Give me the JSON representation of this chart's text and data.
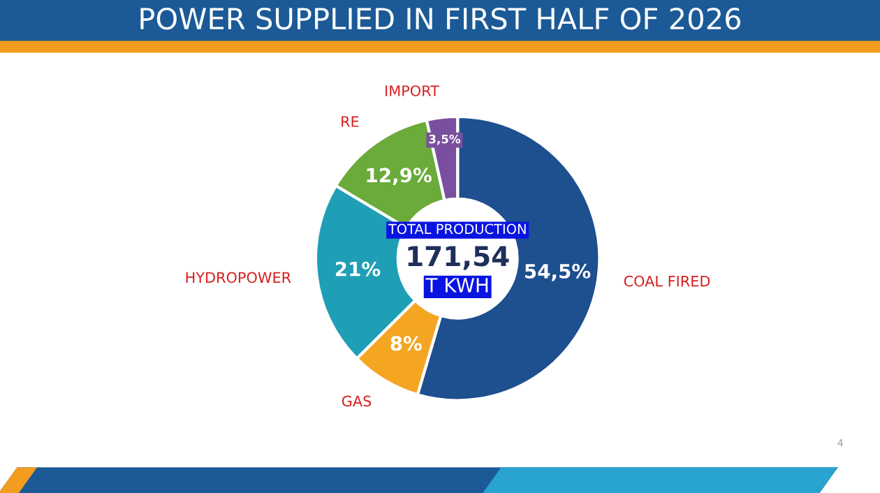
{
  "chart_data": {
    "type": "donut",
    "title": "POWER SUPPLIED IN FIRST HALF OF 2026",
    "categories": [
      "COAL FIRED",
      "GAS",
      "HYDROPOWER",
      "RE",
      "IMPORT"
    ],
    "values": [
      54.5,
      8,
      21,
      12.9,
      3.5
    ],
    "value_labels": [
      "54,5%",
      "8%",
      "21%",
      "12,9%",
      "3,5%"
    ],
    "colors": [
      "#1e4f8f",
      "#f4a623",
      "#1f9fb5",
      "#6aab3b",
      "#7a4f9f"
    ],
    "annotations": [
      "TOTAL PRODUCTION",
      "171,54",
      "T KWH",
      "4"
    ],
    "legend": false
  }
}
